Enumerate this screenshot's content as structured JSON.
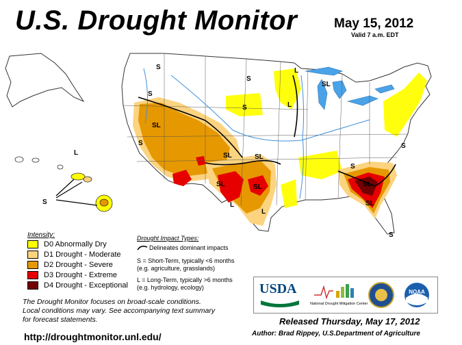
{
  "header": {
    "title": "U.S. Drought Monitor",
    "date": "May 15, 2012",
    "valid": "Valid 7 a.m. EDT"
  },
  "legend": {
    "title": "Intensity:",
    "items": [
      {
        "label": "D0 Abnormally Dry",
        "color": "#ffff00"
      },
      {
        "label": "D1 Drought - Moderate",
        "color": "#fcd37f"
      },
      {
        "label": "D2 Drought - Severe",
        "color": "#e69800"
      },
      {
        "label": "D3 Drought - Extreme",
        "color": "#e60000"
      },
      {
        "label": "D4 Drought - Exceptional",
        "color": "#730000"
      }
    ]
  },
  "impacts": {
    "title": "Drought Impact Types:",
    "delineates": "Delineates dominant impacts",
    "short_term": "S = Short-Term, typically <6 months",
    "short_term_eg": "(e.g. agriculture, grasslands)",
    "long_term": "L = Long-Term, typically >6 months",
    "long_term_eg": "(e.g. hydrology, ecology)"
  },
  "map_labels": {
    "s": "S",
    "l": "L",
    "sl": "SL"
  },
  "logos": {
    "usda": "USDA",
    "ndmc": "National Drought Mitigation Center",
    "noaa": "NOAA"
  },
  "footer": {
    "note_1": "The Drought Monitor focuses on broad-scale conditions.",
    "note_2": "Local conditions may vary. See accompanying text summary",
    "note_3": "for forecast statements.",
    "url": "http://droughtmonitor.unl.edu/",
    "released": "Released Thursday, May 17, 2012",
    "author": "Author: Brad Rippey, U.S.Department of Agriculture"
  },
  "colors": {
    "water": "#3d8fd9",
    "lakes": "#4aa3e8"
  }
}
